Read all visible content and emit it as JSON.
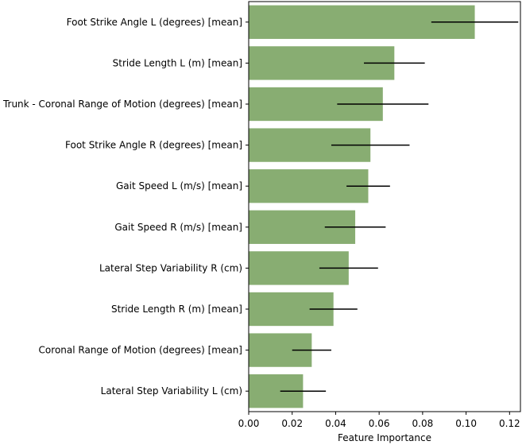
{
  "chart_data": {
    "type": "bar",
    "orientation": "horizontal",
    "title": "",
    "xlabel": "Feature Importance",
    "ylabel": "",
    "xlim": [
      0,
      0.125
    ],
    "xticks": [
      0.0,
      0.02,
      0.04,
      0.06,
      0.08,
      0.1,
      0.12
    ],
    "xtick_labels": [
      "0.00",
      "0.02",
      "0.04",
      "0.06",
      "0.08",
      "0.10",
      "0.12"
    ],
    "bar_color": "#88ad72",
    "grid": false,
    "legend": "none",
    "categories": [
      "Foot Strike Angle L (degrees) [mean]",
      "Stride Length L (m) [mean]",
      "Trunk - Coronal Range of Motion (degrees) [mean]",
      "Foot Strike Angle R (degrees) [mean]",
      "Gait Speed L (m/s) [mean]",
      "Gait Speed R (m/s) [mean]",
      "Lateral Step Variability R (cm)",
      "Stride Length R (m) [mean]",
      "Coronal Range of Motion (degrees) [mean]",
      "Lateral Step Variability L (cm)"
    ],
    "values": [
      0.104,
      0.067,
      0.0617,
      0.056,
      0.055,
      0.049,
      0.046,
      0.039,
      0.029,
      0.025
    ],
    "errors": [
      0.02,
      0.014,
      0.021,
      0.018,
      0.01,
      0.014,
      0.0135,
      0.011,
      0.009,
      0.0105
    ]
  }
}
